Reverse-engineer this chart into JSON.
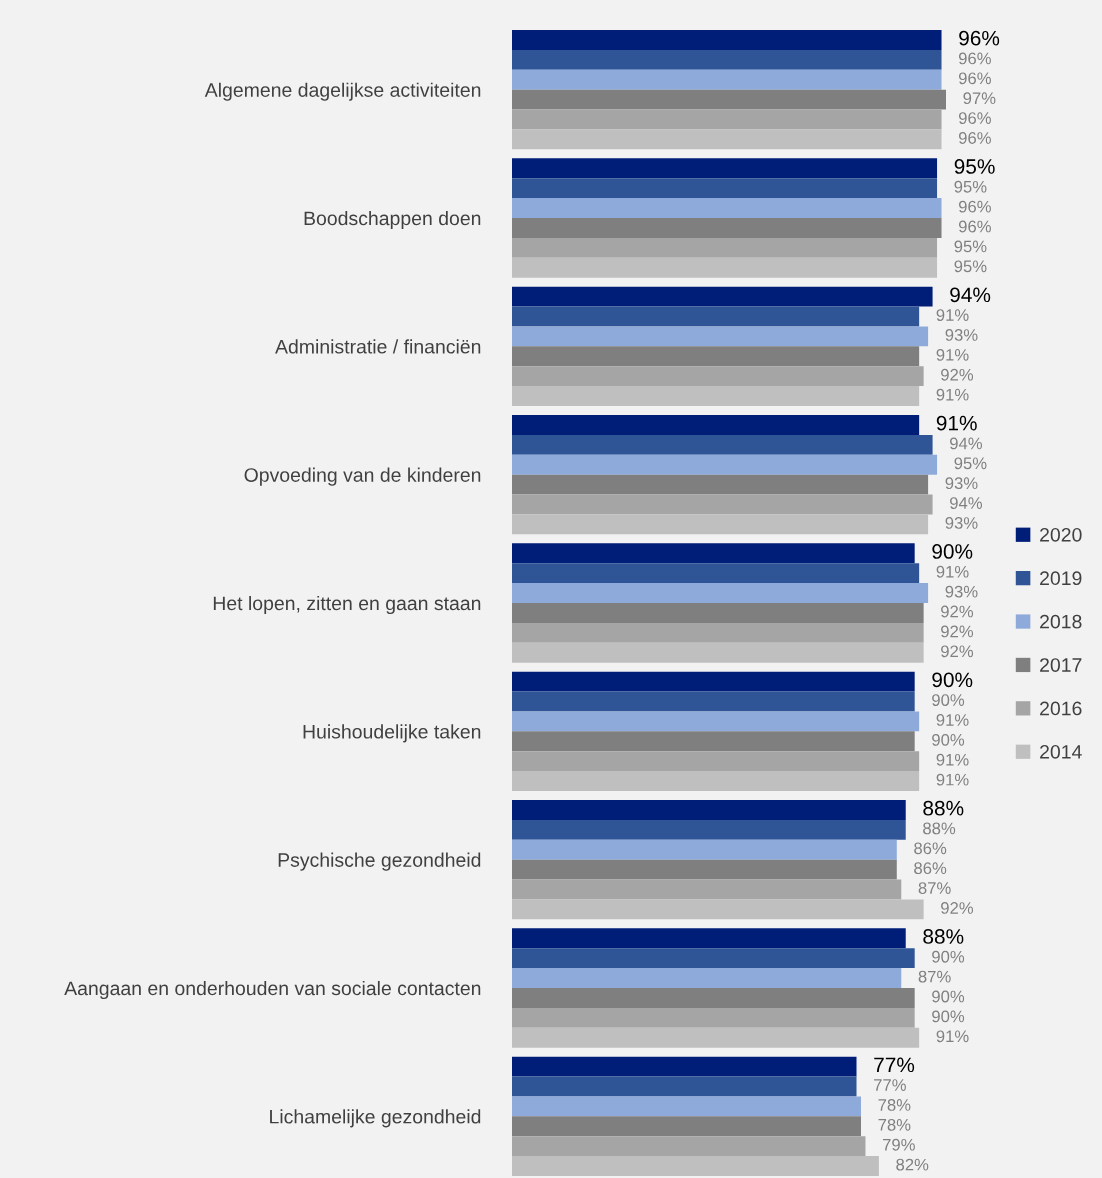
{
  "chart_data": {
    "type": "bar",
    "orientation": "horizontal",
    "legend": "right",
    "tick_labels": "y",
    "grid": false,
    "categories": [
      "Algemene dagelijkse activiteiten",
      "Boodschappen doen",
      "Administratie / financiën",
      "Opvoeding van de kinderen",
      "Het lopen, zitten en gaan staan",
      "Huishoudelijke taken",
      "Psychische gezondheid",
      "Aangaan en onderhouden van sociale contacten",
      "Lichamelijke gezondheid"
    ],
    "series": [
      {
        "name": "2020",
        "color": "#001e78",
        "values": [
          96,
          95,
          94,
          91,
          90,
          90,
          88,
          88,
          77
        ],
        "value_labels": [
          "96%",
          "95%",
          "94%",
          "91%",
          "90%",
          "90%",
          "88%",
          "88%",
          "77%"
        ]
      },
      {
        "name": "2019",
        "color": "#2f5597",
        "values": [
          96,
          95,
          91,
          94,
          91,
          90,
          88,
          90,
          77
        ],
        "value_labels": [
          "96%",
          "95%",
          "91%",
          "94%",
          "91%",
          "90%",
          "88%",
          "90%",
          "77%"
        ]
      },
      {
        "name": "2018",
        "color": "#8eaadb",
        "values": [
          96,
          96,
          93,
          95,
          93,
          91,
          86,
          87,
          78
        ],
        "value_labels": [
          "96%",
          "96%",
          "93%",
          "95%",
          "93%",
          "91%",
          "86%",
          "87%",
          "78%"
        ]
      },
      {
        "name": "2017",
        "color": "#7f7f7f",
        "values": [
          97,
          96,
          91,
          93,
          92,
          90,
          86,
          90,
          78
        ],
        "value_labels": [
          "97%",
          "96%",
          "91%",
          "93%",
          "92%",
          "90%",
          "86%",
          "90%",
          "78%"
        ]
      },
      {
        "name": "2016",
        "color": "#a5a5a5",
        "values": [
          96,
          95,
          92,
          94,
          92,
          91,
          87,
          90,
          79
        ],
        "value_labels": [
          "96%",
          "95%",
          "92%",
          "94%",
          "92%",
          "91%",
          "87%",
          "90%",
          "79%"
        ]
      },
      {
        "name": "2014",
        "color": "#bfbfbf",
        "values": [
          96,
          95,
          91,
          93,
          92,
          91,
          92,
          91,
          82
        ],
        "value_labels": [
          "96%",
          "95%",
          "91%",
          "93%",
          "92%",
          "91%",
          "92%",
          "91%",
          "82%"
        ]
      }
    ]
  }
}
